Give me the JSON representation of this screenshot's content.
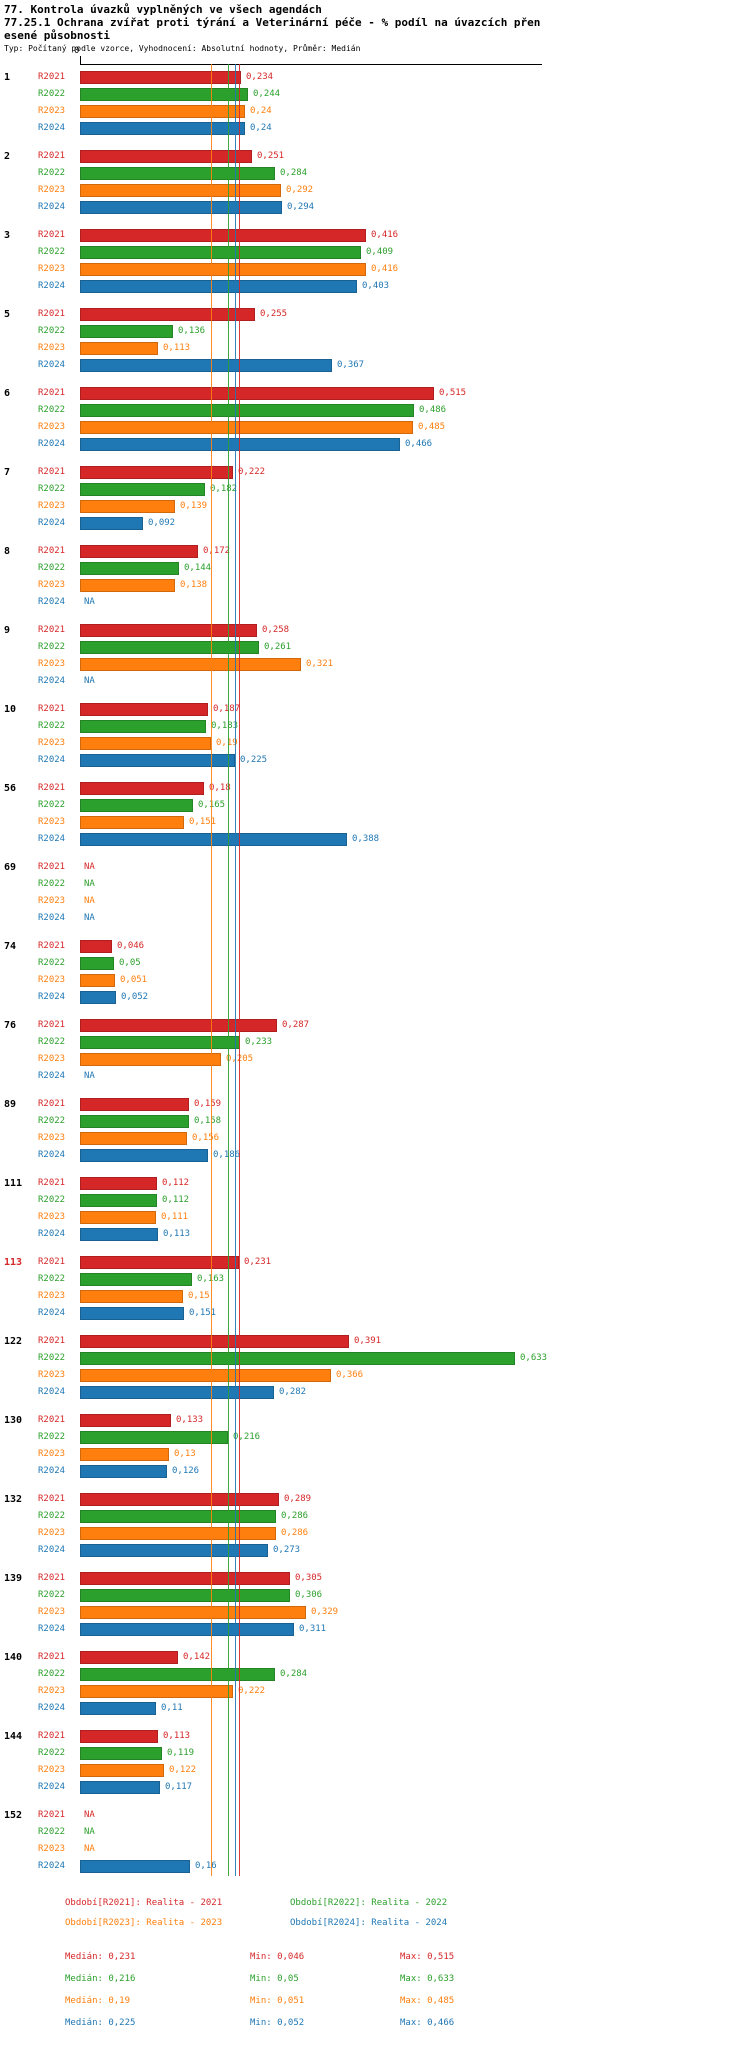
{
  "header": {
    "line1": "77. Kontrola úvazků vyplněných ve všech agendách",
    "line2": "77.25.1 Ochrana zvířat proti týrání a Veterinární péče - % podíl na úvazcích přen",
    "line3": "esené působnosti",
    "subtitle": "Typ: Počítaný podle vzorce, Vyhodnocení: Absolutní hodnoty, Průměr: Medián"
  },
  "axis": {
    "zero_label": "0"
  },
  "chart_data": {
    "type": "bar",
    "orientation": "horizontal",
    "value_format": "czech-decimal-comma",
    "na_label": "NA",
    "grid": false,
    "legend_position": "bottom",
    "xlim": [
      0,
      0.7
    ],
    "highlighted_category": "113",
    "highlight_color": "#d62728",
    "categories": [
      "1",
      "2",
      "3",
      "5",
      "6",
      "7",
      "8",
      "9",
      "10",
      "56",
      "69",
      "74",
      "76",
      "89",
      "111",
      "113",
      "122",
      "130",
      "132",
      "139",
      "140",
      "144",
      "152"
    ],
    "series": [
      {
        "name": "R2021",
        "color": "#d62728",
        "median": 0.231,
        "labels": [
          "0,234",
          "0,251",
          "0,416",
          "0,255",
          "0,515",
          "0,222",
          "0,172",
          "0,258",
          "0,187",
          "0,18",
          "NA",
          "0,046",
          "0,287",
          "0,159",
          "0,112",
          "0,231",
          "0,391",
          "0,133",
          "0,289",
          "0,305",
          "0,142",
          "0,113",
          "NA"
        ]
      },
      {
        "name": "R2022",
        "color": "#2ca02c",
        "median": 0.216,
        "labels": [
          "0,244",
          "0,284",
          "0,409",
          "0,136",
          "0,486",
          "0,182",
          "0,144",
          "0,261",
          "0,183",
          "0,165",
          "NA",
          "0,05",
          "0,233",
          "0,158",
          "0,112",
          "0,163",
          "0,633",
          "0,216",
          "0,286",
          "0,306",
          "0,284",
          "0,119",
          "NA"
        ]
      },
      {
        "name": "R2023",
        "color": "#ff7f0e",
        "median": 0.19,
        "labels": [
          "0,24",
          "0,292",
          "0,416",
          "0,113",
          "0,485",
          "0,139",
          "0,138",
          "0,321",
          "0,19",
          "0,151",
          "NA",
          "0,051",
          "0,205",
          "0,156",
          "0,111",
          "0,15",
          "0,366",
          "0,13",
          "0,286",
          "0,329",
          "0,222",
          "0,122",
          "NA"
        ]
      },
      {
        "name": "R2024",
        "color": "#1f77b4",
        "median": 0.225,
        "labels": [
          "0,24",
          "0,294",
          "0,403",
          "0,367",
          "0,466",
          "0,092",
          "NA",
          "NA",
          "0,225",
          "0,388",
          "NA",
          "0,052",
          "NA",
          "0,186",
          "0,113",
          "0,151",
          "0,282",
          "0,126",
          "0,273",
          "0,311",
          "0,11",
          "0,117",
          "0,16"
        ]
      }
    ]
  },
  "legend": {
    "items": [
      {
        "label": "Období[R2021]: Realita - 2021",
        "color": "#d62728"
      },
      {
        "label": "Období[R2022]: Realita - 2022",
        "color": "#2ca02c"
      },
      {
        "label": "Období[R2023]: Realita - 2023",
        "color": "#ff7f0e"
      },
      {
        "label": "Období[R2024]: Realita - 2024",
        "color": "#1f77b4"
      }
    ]
  },
  "stats": {
    "rows": [
      {
        "series": "R2021",
        "color": "#d62728",
        "median": "Medián: 0,231",
        "min": "Min: 0,046",
        "max": "Max: 0,515"
      },
      {
        "series": "R2022",
        "color": "#2ca02c",
        "median": "Medián: 0,216",
        "min": "Min: 0,05",
        "max": "Max: 0,633"
      },
      {
        "series": "R2023",
        "color": "#ff7f0e",
        "median": "Medián: 0,19",
        "min": "Min: 0,051",
        "max": "Max: 0,485"
      },
      {
        "series": "R2024",
        "color": "#1f77b4",
        "median": "Medián: 0,225",
        "min": "Min: 0,052",
        "max": "Max: 0,466"
      }
    ]
  }
}
